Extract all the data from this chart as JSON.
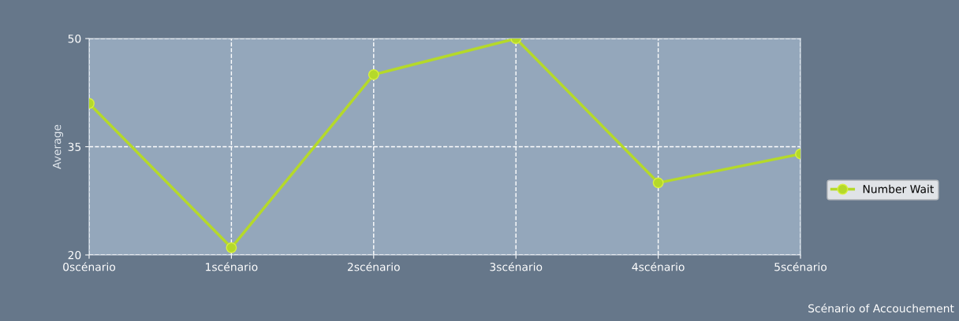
{
  "chart_data": {
    "type": "line",
    "ylabel": "Average",
    "xlabel": "Scénario of Accouchement",
    "categories": [
      "0scénario",
      "1scénario",
      "2scénario",
      "3scénario",
      "4scénario",
      "5scénario"
    ],
    "series": [
      {
        "name": "Number Wait",
        "color": "#b5d92a",
        "values": [
          41,
          21,
          45,
          50,
          30,
          34
        ]
      }
    ],
    "ylim": [
      20,
      50
    ],
    "yticks": [
      20,
      35,
      50
    ],
    "grid": true,
    "legend": "right",
    "marker": "circle",
    "line_style": "solid"
  }
}
